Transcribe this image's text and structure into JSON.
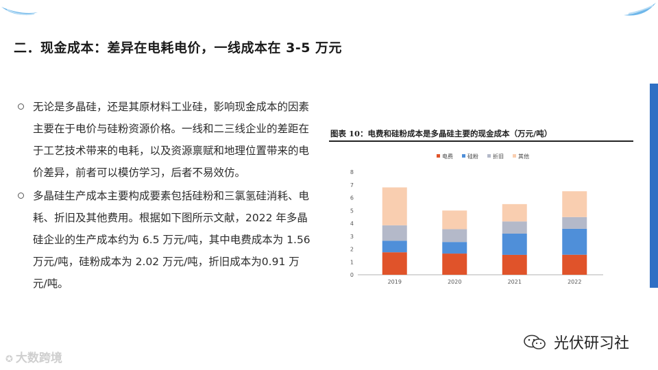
{
  "title": "二．现金成本：差异在电耗电价，一线成本在 3-5 万元",
  "bullets": [
    "无论是多晶硅，还是其原材料工业硅，影响现金成本的因素主要在于电价与硅粉资源价格。一线和二三线企业的差距在于工艺技术带来的电耗，以及资源禀赋和地理位置带来的电价差异，前者可以模仿学习，后者不易效仿。",
    "多晶硅生产成本主要构成要素包括硅粉和三氯氢硅消耗、电耗、折旧及其他费用。根据如下图所示文献，2022 年多晶硅企业的生产成本约为 6.5 万元/吨，其中电费成本为 1.56 万元/吨，硅粉成本为 2.02 万元/吨，折旧成本为0.91 万元/吨。"
  ],
  "figure_title": "图表 10：电费和硅粉成本是多晶硅主要的现金成本（万元/吨）",
  "watermark_left": "大数跨境",
  "watermark_right": "光伏研习社",
  "colors": {
    "accent_bar": "#2f6fc4"
  },
  "chart_data": {
    "type": "bar",
    "stacked": true,
    "categories": [
      "2019",
      "2020",
      "2021",
      "2022"
    ],
    "series": [
      {
        "name": "电费",
        "color": "#e0532a",
        "values": [
          1.75,
          1.65,
          1.55,
          1.56
        ]
      },
      {
        "name": "硅粉",
        "color": "#4f8fd9",
        "values": [
          0.9,
          0.9,
          1.65,
          2.02
        ]
      },
      {
        "name": "折旧",
        "color": "#b4b9c9",
        "values": [
          1.2,
          1.0,
          0.95,
          0.91
        ]
      },
      {
        "name": "其他",
        "color": "#f9ceb0",
        "values": [
          2.95,
          1.45,
          1.35,
          2.01
        ]
      }
    ],
    "ylim": [
      0,
      8
    ],
    "yticks": [
      "0",
      "1",
      "2",
      "3",
      "4",
      "5",
      "6",
      "7",
      "8"
    ],
    "legend_position": "top",
    "grid": false
  }
}
